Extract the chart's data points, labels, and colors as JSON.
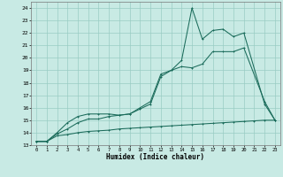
{
  "xlabel": "Humidex (Indice chaleur)",
  "xlim": [
    -0.5,
    23.5
  ],
  "ylim": [
    13,
    24.5
  ],
  "yticks": [
    13,
    14,
    15,
    16,
    17,
    18,
    19,
    20,
    21,
    22,
    23,
    24
  ],
  "xticks": [
    0,
    1,
    2,
    3,
    4,
    5,
    6,
    7,
    8,
    9,
    10,
    11,
    12,
    13,
    14,
    15,
    16,
    17,
    18,
    19,
    20,
    21,
    22,
    23
  ],
  "bg_color": "#c8eae4",
  "grid_color": "#99ccc4",
  "line_color": "#1a6b5a",
  "line1_x": [
    0,
    1,
    2,
    3,
    4,
    5,
    6,
    7,
    8,
    9,
    10,
    11,
    12,
    13,
    14,
    15,
    16,
    17,
    18,
    19,
    20,
    21,
    22,
    23
  ],
  "line1_y": [
    13.3,
    13.3,
    13.75,
    13.85,
    14.0,
    14.1,
    14.15,
    14.2,
    14.3,
    14.35,
    14.4,
    14.45,
    14.5,
    14.55,
    14.6,
    14.65,
    14.7,
    14.75,
    14.8,
    14.85,
    14.9,
    14.95,
    15.0,
    15.0
  ],
  "line2_x": [
    0,
    1,
    2,
    3,
    4,
    5,
    6,
    7,
    8,
    9,
    10,
    11,
    12,
    13,
    14,
    15,
    16,
    17,
    18,
    19,
    20,
    22,
    23
  ],
  "line2_y": [
    13.3,
    13.3,
    13.9,
    14.3,
    14.8,
    15.1,
    15.1,
    15.3,
    15.4,
    15.5,
    16.0,
    16.5,
    18.7,
    19.0,
    19.3,
    19.2,
    19.5,
    20.5,
    20.5,
    20.5,
    20.8,
    16.5,
    15.0
  ],
  "line3_x": [
    0,
    1,
    2,
    3,
    4,
    5,
    6,
    7,
    8,
    9,
    10,
    11,
    12,
    13,
    14,
    15,
    16,
    17,
    18,
    19,
    20,
    22,
    23
  ],
  "line3_y": [
    13.3,
    13.3,
    14.0,
    14.8,
    15.3,
    15.5,
    15.5,
    15.5,
    15.4,
    15.5,
    15.9,
    16.3,
    18.5,
    19.0,
    19.8,
    24.0,
    21.5,
    22.2,
    22.3,
    21.7,
    22.0,
    16.3,
    15.0
  ]
}
